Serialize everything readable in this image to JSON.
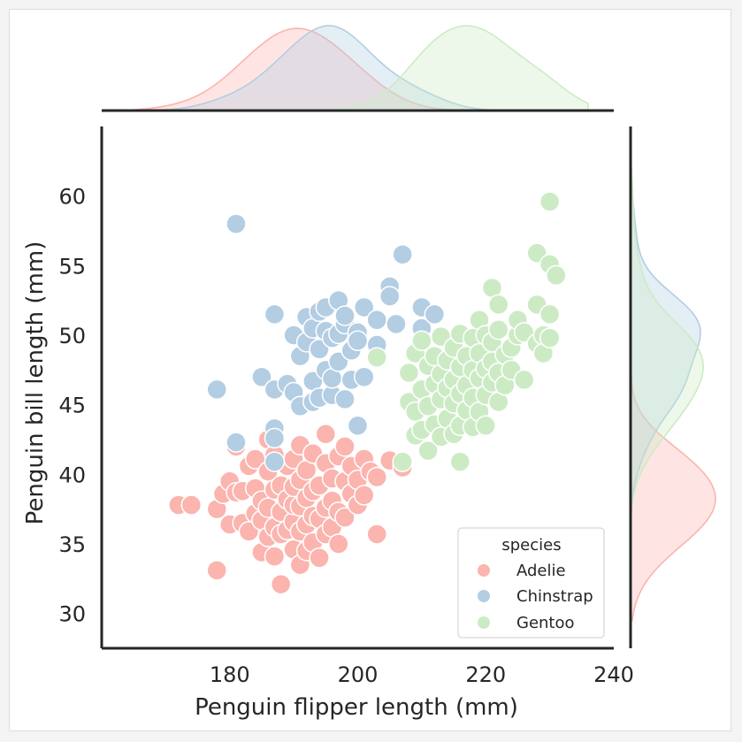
{
  "chart_data": {
    "type": "scatter",
    "xlabel": "Penguin flipper length (mm)",
    "ylabel": "Penguin bill length (mm)",
    "xlim": [
      160,
      240
    ],
    "ylim": [
      27.5,
      65
    ],
    "xticks": [
      180,
      200,
      220,
      240
    ],
    "yticks": [
      30,
      35,
      40,
      45,
      50,
      55,
      60
    ],
    "grid": false,
    "legend": {
      "title": "species",
      "position": "bottom-right"
    },
    "marginals": {
      "top": "kde of flipper length by species",
      "right": "kde of bill length by species"
    },
    "series": [
      {
        "name": "Adelie",
        "color": "#fbb4ae",
        "points": [
          [
            172,
            37.8
          ],
          [
            174,
            37.8
          ],
          [
            178,
            33.1
          ],
          [
            178,
            37.5
          ],
          [
            179,
            38.6
          ],
          [
            180,
            36.4
          ],
          [
            180,
            39.5
          ],
          [
            181,
            38.7
          ],
          [
            181,
            42.0
          ],
          [
            182,
            36.5
          ],
          [
            182,
            38.8
          ],
          [
            183,
            35.9
          ],
          [
            183,
            40.6
          ],
          [
            184,
            37.2
          ],
          [
            184,
            39.0
          ],
          [
            184,
            41.1
          ],
          [
            185,
            34.4
          ],
          [
            185,
            36.7
          ],
          [
            185,
            38.1
          ],
          [
            186,
            35.5
          ],
          [
            186,
            37.6
          ],
          [
            186,
            40.2
          ],
          [
            186,
            42.5
          ],
          [
            187,
            34.1
          ],
          [
            187,
            36.2
          ],
          [
            187,
            38.9
          ],
          [
            187,
            41.4
          ],
          [
            188,
            32.1
          ],
          [
            188,
            35.7
          ],
          [
            188,
            37.3
          ],
          [
            188,
            39.2
          ],
          [
            189,
            36.0
          ],
          [
            189,
            38.2
          ],
          [
            189,
            40.6
          ],
          [
            190,
            34.6
          ],
          [
            190,
            36.6
          ],
          [
            190,
            37.8
          ],
          [
            190,
            39.1
          ],
          [
            190,
            41.1
          ],
          [
            191,
            33.5
          ],
          [
            191,
            35.9
          ],
          [
            191,
            37.7
          ],
          [
            191,
            39.6
          ],
          [
            191,
            42.1
          ],
          [
            192,
            34.5
          ],
          [
            192,
            36.4
          ],
          [
            192,
            38.3
          ],
          [
            192,
            40.3
          ],
          [
            193,
            35.1
          ],
          [
            193,
            37.0
          ],
          [
            193,
            38.8
          ],
          [
            193,
            41.5
          ],
          [
            194,
            34.0
          ],
          [
            194,
            36.8
          ],
          [
            194,
            39.2
          ],
          [
            195,
            35.7
          ],
          [
            195,
            37.6
          ],
          [
            195,
            40.8
          ],
          [
            195,
            42.9
          ],
          [
            196,
            36.2
          ],
          [
            196,
            38.1
          ],
          [
            196,
            39.7
          ],
          [
            197,
            35.0
          ],
          [
            197,
            37.3
          ],
          [
            197,
            41.3
          ],
          [
            198,
            36.9
          ],
          [
            198,
            39.5
          ],
          [
            198,
            42.0
          ],
          [
            199,
            38.6
          ],
          [
            199,
            40.6
          ],
          [
            200,
            37.8
          ],
          [
            200,
            39.6
          ],
          [
            201,
            38.5
          ],
          [
            201,
            41.1
          ],
          [
            202,
            40.2
          ],
          [
            203,
            35.7
          ],
          [
            203,
            39.8
          ],
          [
            205,
            41.0
          ],
          [
            207,
            40.5
          ]
        ]
      },
      {
        "name": "Chinstrap",
        "color": "#b3cde3",
        "points": [
          [
            178,
            46.1
          ],
          [
            181,
            42.3
          ],
          [
            181,
            58.0
          ],
          [
            185,
            47.0
          ],
          [
            187,
            43.3
          ],
          [
            187,
            51.5
          ],
          [
            187,
            46.1
          ],
          [
            187,
            42.6
          ],
          [
            187,
            40.9
          ],
          [
            189,
            46.5
          ],
          [
            190,
            45.9
          ],
          [
            190,
            50.0
          ],
          [
            191,
            48.5
          ],
          [
            191,
            44.9
          ],
          [
            192,
            49.5
          ],
          [
            192,
            51.3
          ],
          [
            193,
            45.2
          ],
          [
            193,
            46.7
          ],
          [
            193,
            50.5
          ],
          [
            194,
            49.0
          ],
          [
            194,
            51.7
          ],
          [
            194,
            45.5
          ],
          [
            195,
            47.5
          ],
          [
            195,
            50.3
          ],
          [
            195,
            52.0
          ],
          [
            196,
            45.7
          ],
          [
            196,
            49.8
          ],
          [
            196,
            46.9
          ],
          [
            197,
            50.1
          ],
          [
            197,
            52.5
          ],
          [
            197,
            48.1
          ],
          [
            198,
            45.4
          ],
          [
            198,
            50.8
          ],
          [
            198,
            51.4
          ],
          [
            199,
            48.9
          ],
          [
            199,
            46.8
          ],
          [
            200,
            50.2
          ],
          [
            200,
            43.5
          ],
          [
            200,
            49.6
          ],
          [
            201,
            52.0
          ],
          [
            201,
            47.0
          ],
          [
            203,
            49.3
          ],
          [
            203,
            51.1
          ],
          [
            205,
            53.5
          ],
          [
            205,
            52.8
          ],
          [
            206,
            50.8
          ],
          [
            207,
            55.8
          ],
          [
            210,
            52.0
          ],
          [
            210,
            50.5
          ],
          [
            212,
            51.5
          ]
        ]
      },
      {
        "name": "Gentoo",
        "color": "#ccebc5",
        "points": [
          [
            203,
            48.4
          ],
          [
            207,
            40.9
          ],
          [
            208,
            45.2
          ],
          [
            208,
            47.3
          ],
          [
            209,
            42.8
          ],
          [
            209,
            44.5
          ],
          [
            209,
            48.7
          ],
          [
            210,
            43.2
          ],
          [
            210,
            46.1
          ],
          [
            210,
            49.6
          ],
          [
            211,
            41.7
          ],
          [
            211,
            44.9
          ],
          [
            211,
            47.8
          ],
          [
            212,
            43.6
          ],
          [
            212,
            46.5
          ],
          [
            212,
            48.5
          ],
          [
            213,
            42.7
          ],
          [
            213,
            45.4
          ],
          [
            213,
            47.2
          ],
          [
            213,
            49.9
          ],
          [
            214,
            44.0
          ],
          [
            214,
            46.2
          ],
          [
            214,
            48.2
          ],
          [
            215,
            42.9
          ],
          [
            215,
            45.1
          ],
          [
            215,
            46.8
          ],
          [
            215,
            49.1
          ],
          [
            216,
            40.9
          ],
          [
            216,
            43.5
          ],
          [
            216,
            45.8
          ],
          [
            216,
            47.7
          ],
          [
            216,
            50.1
          ],
          [
            217,
            44.6
          ],
          [
            217,
            46.4
          ],
          [
            217,
            48.5
          ],
          [
            218,
            43.4
          ],
          [
            218,
            45.5
          ],
          [
            218,
            47.5
          ],
          [
            218,
            49.8
          ],
          [
            219,
            44.5
          ],
          [
            219,
            46.9
          ],
          [
            219,
            48.7
          ],
          [
            219,
            51.1
          ],
          [
            220,
            43.5
          ],
          [
            220,
            45.7
          ],
          [
            220,
            47.6
          ],
          [
            220,
            50.0
          ],
          [
            221,
            46.6
          ],
          [
            221,
            48.1
          ],
          [
            221,
            49.5
          ],
          [
            221,
            53.4
          ],
          [
            222,
            45.2
          ],
          [
            222,
            47.3
          ],
          [
            222,
            50.4
          ],
          [
            222,
            52.2
          ],
          [
            223,
            46.4
          ],
          [
            223,
            48.6
          ],
          [
            224,
            47.5
          ],
          [
            224,
            49.1
          ],
          [
            225,
            50.0
          ],
          [
            225,
            51.1
          ],
          [
            226,
            46.8
          ],
          [
            226,
            50.2
          ],
          [
            228,
            49.4
          ],
          [
            228,
            52.2
          ],
          [
            228,
            55.9
          ],
          [
            229,
            50.0
          ],
          [
            229,
            48.7
          ],
          [
            230,
            49.8
          ],
          [
            230,
            51.5
          ],
          [
            230,
            55.1
          ],
          [
            230,
            59.6
          ],
          [
            231,
            54.3
          ]
        ]
      }
    ]
  }
}
